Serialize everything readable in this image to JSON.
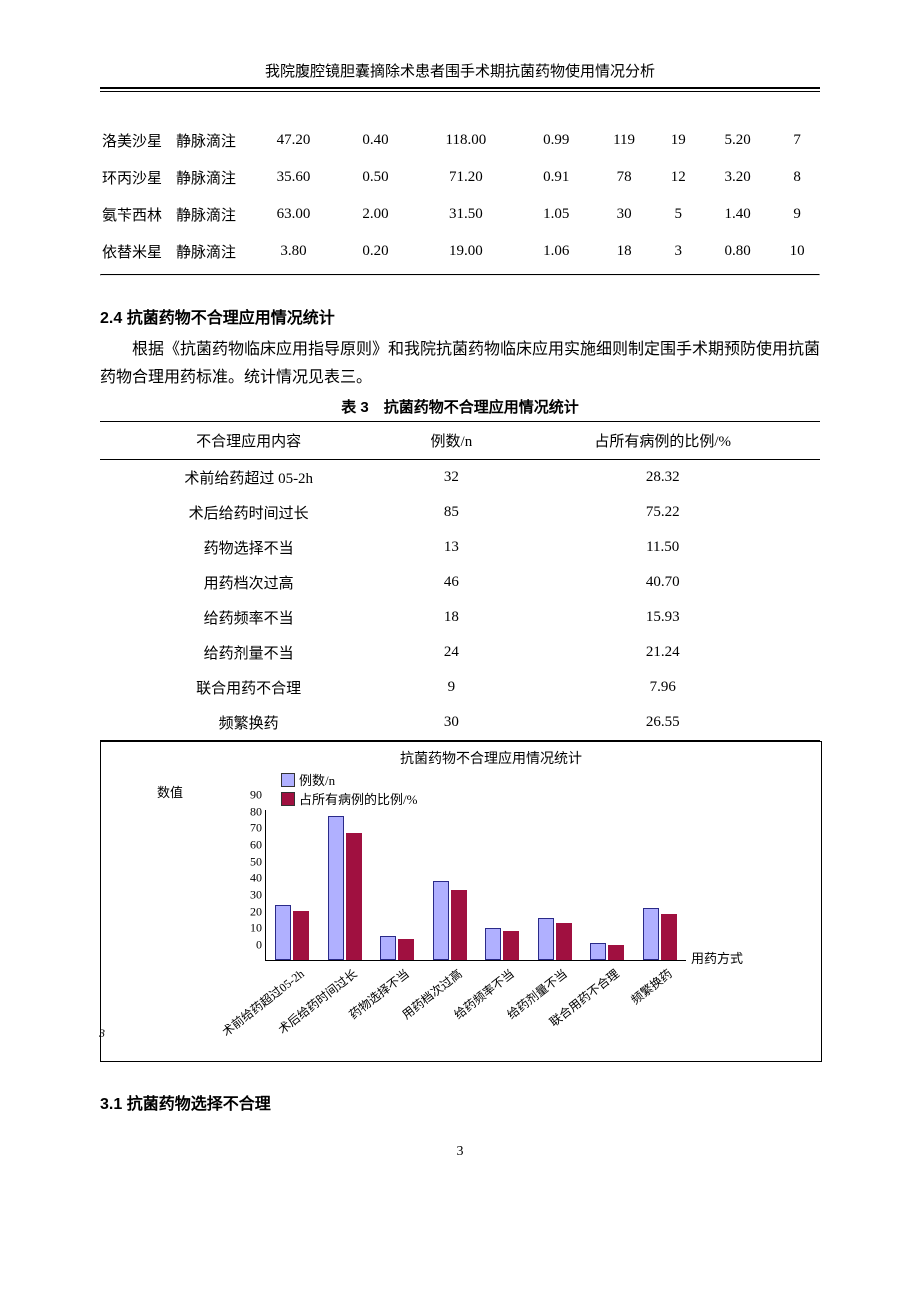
{
  "page": {
    "running_head": "我院腹腔镜胆囊摘除术患者围手术期抗菌药物使用情况分析",
    "number": "3"
  },
  "table_top": {
    "rows": [
      {
        "drug": "洛美沙星",
        "route": "静脉滴注",
        "c1": "47.20",
        "c2": "0.40",
        "c3": "118.00",
        "c4": "0.99",
        "c5": "119",
        "c6": "19",
        "c7": "5.20",
        "c8": "7"
      },
      {
        "drug": "环丙沙星",
        "route": "静脉滴注",
        "c1": "35.60",
        "c2": "0.50",
        "c3": "71.20",
        "c4": "0.91",
        "c5": "78",
        "c6": "12",
        "c7": "3.20",
        "c8": "8"
      },
      {
        "drug": "氨苄西林",
        "route": "静脉滴注",
        "c1": "63.00",
        "c2": "2.00",
        "c3": "31.50",
        "c4": "1.05",
        "c5": "30",
        "c6": "5",
        "c7": "1.40",
        "c8": "9"
      },
      {
        "drug": "依替米星",
        "route": "静脉滴注",
        "c1": "3.80",
        "c2": "0.20",
        "c3": "19.00",
        "c4": "1.06",
        "c5": "18",
        "c6": "3",
        "c7": "0.80",
        "c8": "10"
      }
    ]
  },
  "section_2_4": {
    "heading": "2.4 抗菌药物不合理应用情况统计",
    "para": "根据《抗菌药物临床应用指导原则》和我院抗菌药物临床应用实施细则制定围手术期预防使用抗菌药物合理用药标准。统计情况见表三。"
  },
  "table3": {
    "caption": "表 3　抗菌药物不合理应用情况统计",
    "columns": [
      "不合理应用内容",
      "例数/n",
      "占所有病例的比例/%"
    ],
    "rows": [
      {
        "item": "术前给药超过 05-2h",
        "n": "32",
        "pct": "28.32"
      },
      {
        "item": "术后给药时间过长",
        "n": "85",
        "pct": "75.22"
      },
      {
        "item": "药物选择不当",
        "n": "13",
        "pct": "11.50"
      },
      {
        "item": "用药档次过高",
        "n": "46",
        "pct": "40.70"
      },
      {
        "item": "给药频率不当",
        "n": "18",
        "pct": "15.93"
      },
      {
        "item": "给药剂量不当",
        "n": "24",
        "pct": "21.24"
      },
      {
        "item": "联合用药不合理",
        "n": "9",
        "pct": "7.96"
      },
      {
        "item": "频繁换药",
        "n": "30",
        "pct": "26.55"
      }
    ]
  },
  "chart": {
    "title": "抗菌药物不合理应用情况统计",
    "y_label": "数值",
    "x_label": "用药方式",
    "legend": [
      {
        "label": "例数/n",
        "color": "#b0b0ff"
      },
      {
        "label": "占所有病例的比例/%",
        "color": "#a01040"
      }
    ],
    "categories": [
      "术前给药超过05-2h",
      "术后给药时间过长",
      "药物选择不当",
      "用药档次过高",
      "给药频率不当",
      "给药剂量不当",
      "联合用药不合理",
      "频繁换药"
    ],
    "series_n": [
      32,
      85,
      13,
      46,
      18,
      24,
      9,
      30
    ],
    "series_pct": [
      28.32,
      75.22,
      11.5,
      40.7,
      15.93,
      21.24,
      7.96,
      26.55
    ],
    "y_ticks": [
      0,
      10,
      20,
      30,
      40,
      50,
      60,
      70,
      80,
      90
    ],
    "y_max": 90,
    "colors": {
      "n": "#b0b0ff",
      "pct": "#a01040",
      "border": "#2a2a88"
    },
    "stray_mark": "3"
  },
  "section_3_1": {
    "heading": "3.1 抗菌药物选择不合理"
  }
}
